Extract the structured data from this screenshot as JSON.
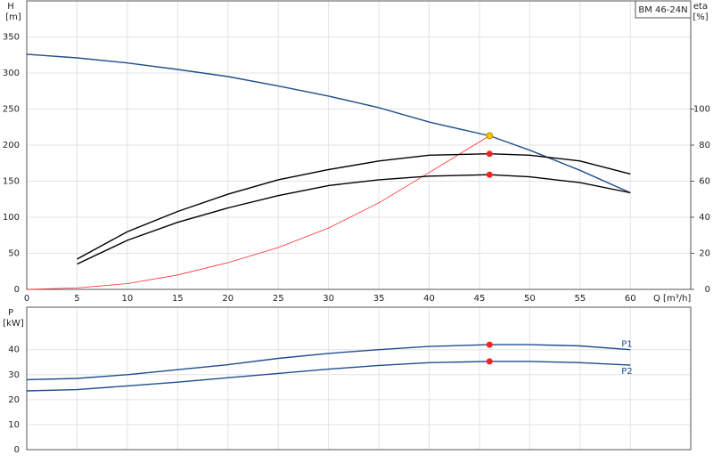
{
  "chart_data": [
    {
      "type": "line",
      "title": "BM 46-24N",
      "y_label": "H",
      "y_unit": "[m]",
      "y2_label": "eta",
      "y2_unit": "[%]",
      "x_label": "Q [m³/h]",
      "x": [
        0,
        5,
        10,
        15,
        20,
        25,
        30,
        35,
        40,
        46,
        50,
        55,
        60
      ],
      "xlim": [
        0,
        66
      ],
      "xticks": [
        0,
        5,
        10,
        15,
        20,
        25,
        30,
        35,
        40,
        45,
        50,
        55,
        60
      ],
      "ylim": [
        0,
        400
      ],
      "yticks": [
        0,
        50,
        100,
        150,
        200,
        250,
        300,
        350
      ],
      "y2lim": [
        0,
        160
      ],
      "y2ticks": [
        0,
        20,
        40,
        60,
        80,
        100
      ],
      "grid": true,
      "series": [
        {
          "color": "#1f4e8c",
          "values": [
            326,
            321,
            314,
            305,
            295,
            282,
            268,
            252,
            232,
            213,
            193,
            165,
            134
          ]
        },
        {
          "color": "#ff2a2a",
          "values": [
            0,
            2,
            8,
            20,
            37,
            58,
            85,
            120,
            162,
            213,
            null,
            null,
            null
          ]
        },
        {
          "color": "#000000",
          "axis": "y2",
          "values": [
            null,
            16.8,
            32,
            43.2,
            52.8,
            60.8,
            66.4,
            71.2,
            74.4,
            75.2,
            74.4,
            71.2,
            64
          ]
        },
        {
          "color": "#000000",
          "axis": "y2",
          "values": [
            null,
            14,
            27.2,
            37.2,
            45.2,
            52,
            57.6,
            60.8,
            62.8,
            63.6,
            62.4,
            59.2,
            53.6
          ]
        }
      ],
      "points": [
        {
          "x": 46,
          "y": 213,
          "color": "#f5c400"
        },
        {
          "x": 46,
          "y": 75.2,
          "axis": "y2",
          "color": "#ff2020"
        },
        {
          "x": 46,
          "y": 63.6,
          "axis": "y2",
          "color": "#ff2020"
        }
      ]
    },
    {
      "type": "line",
      "y_label": "P",
      "y_unit": "[kW]",
      "x": [
        0,
        5,
        10,
        15,
        20,
        25,
        30,
        35,
        40,
        46,
        50,
        55,
        60
      ],
      "xlim": [
        0,
        66
      ],
      "ylim": [
        0,
        57
      ],
      "yticks": [
        0,
        10,
        20,
        30,
        40
      ],
      "grid": true,
      "series": [
        {
          "name": "P1",
          "color": "#1f4e8c",
          "values": [
            28,
            28.5,
            30,
            32,
            34,
            36.5,
            38.5,
            40,
            41.3,
            42,
            42,
            41.5,
            40
          ]
        },
        {
          "name": "P2",
          "color": "#1f4e8c",
          "values": [
            23.5,
            24,
            25.5,
            27,
            28.8,
            30.5,
            32.2,
            33.7,
            34.8,
            35.3,
            35.3,
            34.8,
            33.8
          ]
        }
      ],
      "points": [
        {
          "x": 46,
          "y": 42,
          "color": "#ff2020"
        },
        {
          "x": 46,
          "y": 35.3,
          "color": "#ff2020"
        }
      ]
    }
  ]
}
